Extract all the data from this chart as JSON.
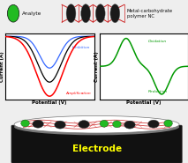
{
  "bg_color": "#eeeeee",
  "analyte_color": "#22bb22",
  "metal_np_color": "#1a1a1a",
  "polymer_color": "#cc2222",
  "electrode_dark": "#111111",
  "electrode_mid": "#333333",
  "electrode_text": "#ffff00",
  "left_panel": {
    "inhibition_label": "Inhibition",
    "amplification_label": "Amplification",
    "xlabel": "Potential (V)",
    "ylabel": "Current (A)"
  },
  "right_panel": {
    "oxidation_label": "Oxidation",
    "reduction_label": "Reduction",
    "xlabel": "Potential (V)",
    "ylabel": "Current (A)"
  },
  "legend_analyte": "Analyte",
  "legend_nc": "Metal-carbohydrate\npolymer NC",
  "electrode_label": "Electrode"
}
